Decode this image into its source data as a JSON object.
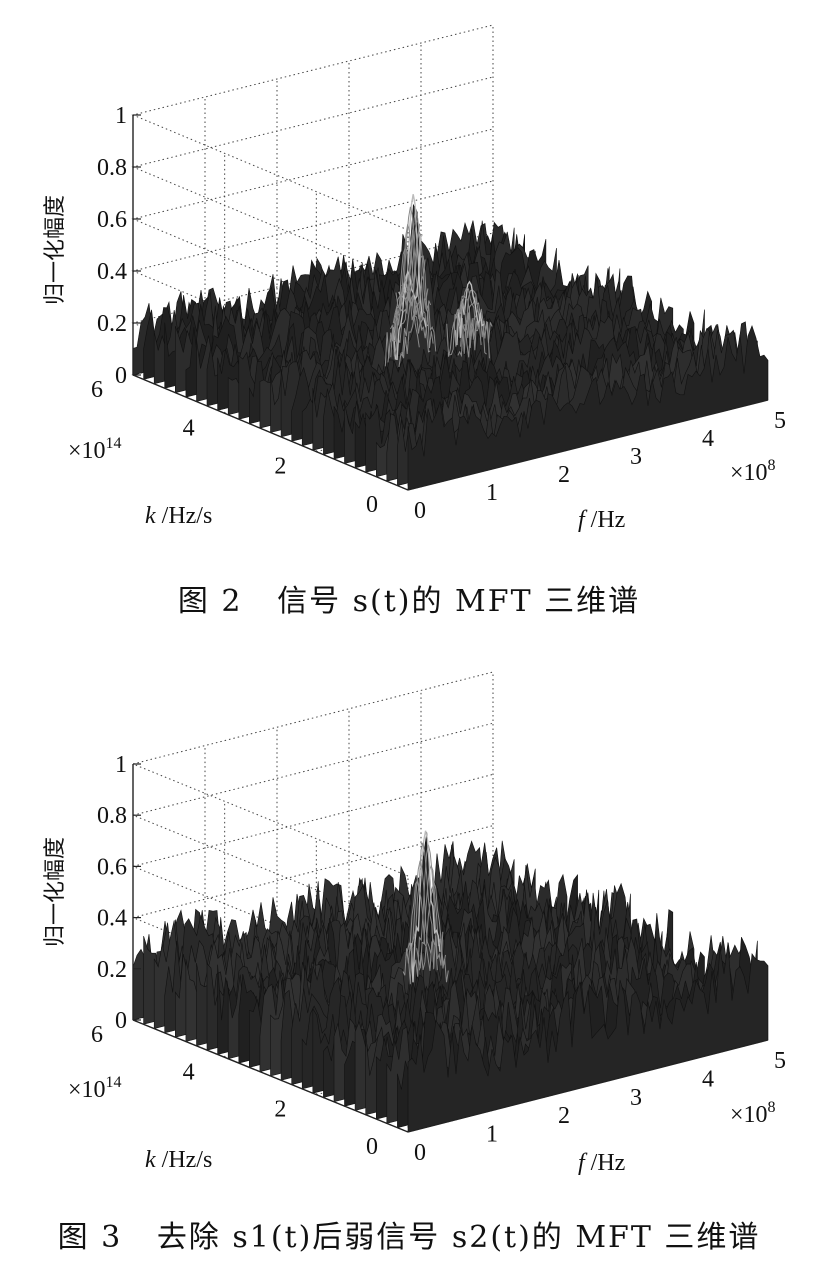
{
  "figures": [
    {
      "caption": {
        "prefix": "图 2",
        "text": "信号 s(t)的 MFT 三维谱"
      },
      "chart_data": {
        "type": "surface3d",
        "zlabel": "归一化幅度",
        "xlabel": "f /Hz",
        "ylabel": "k /Hz/s",
        "x_multiplier": "×10^8",
        "y_multiplier": "×10^14",
        "x_ticks": [
          "0",
          "1",
          "2",
          "3",
          "4",
          "5"
        ],
        "y_ticks": [
          "0",
          "2",
          "4",
          "6"
        ],
        "z_ticks": [
          "0",
          "0.2",
          "0.4",
          "0.6",
          "0.8",
          "1"
        ],
        "xlim": [
          0,
          5
        ],
        "ylim": [
          0,
          6
        ],
        "zlim": [
          0,
          1
        ],
        "grid": true,
        "noise_floor": 0.22,
        "peaks": [
          {
            "f": 2.3,
            "k": 3.5,
            "z": 0.72
          },
          {
            "f": 2.1,
            "k": 3.3,
            "z": 0.45
          },
          {
            "f": 2.7,
            "k": 2.9,
            "z": 0.4
          }
        ]
      }
    },
    {
      "caption": {
        "prefix": "图 3",
        "text": "去除 s1(t)后弱信号 s2(t)的 MFT 三维谱"
      },
      "chart_data": {
        "type": "surface3d",
        "zlabel": "归一化幅度",
        "xlabel": "f /Hz",
        "ylabel": "k /Hz/s",
        "x_multiplier": "×10^8",
        "y_multiplier": "×10^14",
        "x_ticks": [
          "0",
          "1",
          "2",
          "3",
          "4",
          "5"
        ],
        "y_ticks": [
          "0",
          "2",
          "4",
          "6"
        ],
        "z_ticks": [
          "0",
          "0.2",
          "0.4",
          "0.6",
          "0.8",
          "1"
        ],
        "xlim": [
          0,
          5
        ],
        "ylim": [
          0,
          6
        ],
        "zlim": [
          0,
          1
        ],
        "grid": true,
        "noise_floor": 0.3,
        "peaks": [
          {
            "f": 2.6,
            "k": 3.7,
            "z": 0.72
          }
        ]
      }
    }
  ]
}
